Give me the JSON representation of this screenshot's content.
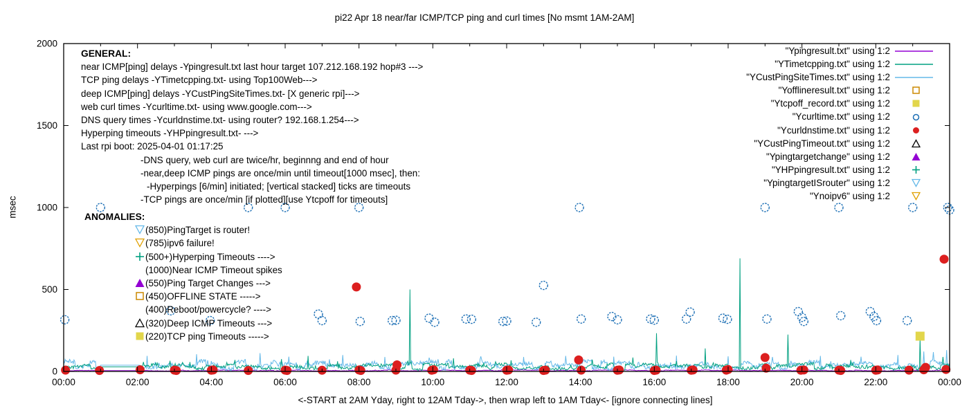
{
  "title": "pi22 Apr 18  near/far ICMP/TCP ping and curl times [No msmt 1AM-2AM]",
  "axes": {
    "y_label": "msec",
    "y_ticks": [
      "0",
      "500",
      "1000",
      "1500",
      "2000"
    ],
    "x_ticks": [
      "00:00",
      "02:00",
      "04:00",
      "06:00",
      "08:00",
      "10:00",
      "12:00",
      "14:00",
      "16:00",
      "18:00",
      "20:00",
      "22:00",
      "00:00"
    ],
    "x_label": "<-START at 2AM Yday, right to 12AM Tday->, then wrap left to 1AM Tday<- [ignore connecting lines]"
  },
  "legend": {
    "entries": [
      {
        "label": "\"Ypingresult.txt\" using 1:2",
        "sample": "line",
        "color": "#9400d3"
      },
      {
        "label": "\"YTimetcpping.txt\" using 1:2",
        "sample": "line",
        "color": "#00a080"
      },
      {
        "label": "\"YCustPingSiteTimes.txt\" using 1:2",
        "sample": "line",
        "color": "#63b8e8"
      },
      {
        "label": "\"Yofflineresult.txt\" using 1:2",
        "sample": "square-open",
        "color": "#cc8800"
      },
      {
        "label": "\"Ytcpoff_record.txt\" using 1:2",
        "sample": "square-filled",
        "color": "#e2d64b"
      },
      {
        "label": "\"Ycurltime.txt\" using 1:2",
        "sample": "circle-open",
        "color": "#1c6fb5"
      },
      {
        "label": "\"Ycurldnstime.txt\" using 1:2",
        "sample": "circle-filled",
        "color": "#dc1f1f"
      },
      {
        "label": "\"YCustPingTimeout.txt\" using 1:2",
        "sample": "tri-up-open",
        "color": "#000000"
      },
      {
        "label": "\"Ypingtargetchange\" using 1:2",
        "sample": "tri-up-filled",
        "color": "#9400d3"
      },
      {
        "label": "\"YHPpingresult.txt\" using 1:2",
        "sample": "plus",
        "color": "#00a080"
      },
      {
        "label": "\"YpingtargetISrouter\" using 1:2",
        "sample": "tri-down-open",
        "color": "#63b8e8"
      },
      {
        "label": "\"Ynoipv6\" using 1:2",
        "sample": "tri-down-open",
        "color": "#e0a000"
      }
    ]
  },
  "annotations": {
    "general_title": "GENERAL:",
    "general_lines": [
      {
        "text": "near ICMP[ping] delays -Ypingresult.txt last hour target 107.212.168.192 hop#3 --->",
        "indent": 0
      },
      {
        "text": "TCP ping delays -YTimetcpping.txt- using Top100Web--->",
        "indent": 0
      },
      {
        "text": "deep ICMP[ping] delays -YCustPingSiteTimes.txt- [X generic rpi]--->",
        "indent": 0
      },
      {
        "text": "web curl times -Ycurltime.txt- using www.google.com--->",
        "indent": 0
      },
      {
        "text": "DNS query times -Ycurldnstime.txt- using router? 192.168.1.254--->",
        "indent": 0
      },
      {
        "text": "Hyperping timeouts -YHPpingresult.txt- --->",
        "indent": 0
      },
      {
        "text": "Last rpi boot: 2025-04-01 01:17:25",
        "indent": 0
      },
      {
        "text": "-DNS query, web curl are twice/hr, beginnng and end of hour",
        "indent": 1
      },
      {
        "text": "-near,deep ICMP pings are once/min until timeout[1000 msec], then:",
        "indent": 1
      },
      {
        "text": "-Hyperpings [6/min] initiated; [vertical stacked] ticks are timeouts",
        "indent": 2
      },
      {
        "text": "-TCP pings are once/min [if plotted][use Ytcpoff for timeouts]",
        "indent": 1
      }
    ],
    "anomalies_title": "ANOMALIES:",
    "anomalies": [
      {
        "marker": "tri-down-open",
        "color": "#63b8e8",
        "text": "(850)PingTarget is router!"
      },
      {
        "marker": "tri-down-open",
        "color": "#e0a000",
        "text": "(785)ipv6 failure!"
      },
      {
        "marker": "plus",
        "color": "#00a080",
        "text": "(500+)Hyperping Timeouts ---->"
      },
      {
        "marker": "none",
        "color": "",
        "text": "(1000)Near ICMP Timeout spikes"
      },
      {
        "marker": "tri-up-filled",
        "color": "#9400d3",
        "text": "(550)Ping Target Changes --->"
      },
      {
        "marker": "square-open",
        "color": "#cc8800",
        "text": "(450)OFFLINE STATE ----->"
      },
      {
        "marker": "none",
        "color": "",
        "text": "(400)Reboot/powercycle? ---->"
      },
      {
        "marker": "tri-up-open",
        "color": "#000000",
        "text": "(320)Deep ICMP Timeouts --->"
      },
      {
        "marker": "square-filled",
        "color": "#e2d64b",
        "text": "(220)TCP ping Timeouts ----->"
      }
    ]
  },
  "chart_data": {
    "type": "line",
    "title": "pi22 Apr 18  near/far ICMP/TCP ping and curl times [No msmt 1AM-2AM]",
    "xlabel": "<-START at 2AM Yday, right to 12AM Tday->, then wrap left to 1AM Tday<- [ignore connecting lines]",
    "ylabel": "msec",
    "x_unit": "hour_of_day",
    "xlim": [
      0,
      24
    ],
    "ylim": [
      0,
      2000
    ],
    "grid": false,
    "legend_position": "top-right",
    "no_measurement_gap_hours": [
      1.0,
      2.05
    ],
    "series": [
      {
        "name": "Ypingresult.txt",
        "style": "line",
        "color": "#9400d3",
        "baseline": {
          "min": 3,
          "max": 9,
          "gap_value": 5
        },
        "spikes": []
      },
      {
        "name": "YCustPingSiteTimes.txt",
        "style": "line",
        "color": "#63b8e8",
        "baseline": {
          "min": 14,
          "max": 62,
          "gap_value": 38
        },
        "spikes": [
          [
            2.25,
            95
          ],
          [
            3.6,
            105
          ],
          [
            5.32,
            112
          ],
          [
            6.1,
            90
          ],
          [
            7.55,
            100
          ],
          [
            8.7,
            88
          ],
          [
            11.3,
            92
          ],
          [
            12.45,
            88
          ],
          [
            13.6,
            95
          ],
          [
            14.9,
            90
          ],
          [
            16.6,
            96
          ],
          [
            18.0,
            92
          ],
          [
            19.2,
            88
          ],
          [
            20.5,
            95
          ],
          [
            21.6,
            90
          ],
          [
            22.6,
            100
          ],
          [
            23.3,
            122
          ],
          [
            23.55,
            118
          ],
          [
            23.92,
            130
          ]
        ]
      },
      {
        "name": "YTimetcpping.txt",
        "style": "line",
        "color": "#00a080",
        "baseline": {
          "min": 12,
          "max": 46,
          "gap_value": 28
        },
        "spikes": [
          [
            2.88,
            65
          ],
          [
            4.63,
            70
          ],
          [
            5.9,
            75
          ],
          [
            6.62,
            95
          ],
          [
            7.42,
            62
          ],
          [
            9.38,
            500
          ],
          [
            10.55,
            80
          ],
          [
            12.12,
            68
          ],
          [
            14.32,
            72
          ],
          [
            15.42,
            85
          ],
          [
            16.05,
            233
          ],
          [
            17.37,
            140
          ],
          [
            18.32,
            690
          ],
          [
            19.63,
            225
          ],
          [
            21.32,
            70
          ],
          [
            23.2,
            200
          ],
          [
            23.82,
            88
          ]
        ]
      },
      {
        "name": "Ycurltime.txt",
        "style": "points",
        "marker": "circle-open",
        "color": "#1c6fb5",
        "points": [
          [
            0.03,
            315
          ],
          [
            1.0,
            1000
          ],
          [
            2.9,
            370
          ],
          [
            3.97,
            310
          ],
          [
            5.0,
            1000
          ],
          [
            6.0,
            1000
          ],
          [
            6.9,
            350
          ],
          [
            7.0,
            310
          ],
          [
            8.0,
            1000
          ],
          [
            8.03,
            305
          ],
          [
            8.9,
            310
          ],
          [
            9.0,
            312
          ],
          [
            9.9,
            325
          ],
          [
            10.05,
            300
          ],
          [
            10.9,
            320
          ],
          [
            11.05,
            318
          ],
          [
            11.9,
            305
          ],
          [
            12.0,
            307
          ],
          [
            12.8,
            300
          ],
          [
            13.0,
            525
          ],
          [
            13.97,
            1000
          ],
          [
            14.02,
            320
          ],
          [
            14.85,
            335
          ],
          [
            15.0,
            315
          ],
          [
            15.9,
            320
          ],
          [
            16.0,
            313
          ],
          [
            16.87,
            320
          ],
          [
            16.97,
            362
          ],
          [
            17.86,
            325
          ],
          [
            17.98,
            318
          ],
          [
            19.0,
            1000
          ],
          [
            19.05,
            320
          ],
          [
            19.9,
            365
          ],
          [
            20.0,
            330
          ],
          [
            20.05,
            305
          ],
          [
            21.0,
            1000
          ],
          [
            21.05,
            340
          ],
          [
            21.85,
            365
          ],
          [
            21.95,
            335
          ],
          [
            22.02,
            310
          ],
          [
            22.85,
            310
          ],
          [
            23.0,
            1000
          ],
          [
            23.95,
            1000
          ],
          [
            24.0,
            985
          ]
        ]
      },
      {
        "name": "Ycurldnstime.txt",
        "style": "points",
        "marker": "circle-filled",
        "color": "#dc1f1f",
        "points": [
          [
            0.05,
            8
          ],
          [
            0.97,
            6
          ],
          [
            2.07,
            10
          ],
          [
            3.0,
            8
          ],
          [
            3.05,
            6
          ],
          [
            4.0,
            7
          ],
          [
            4.05,
            9
          ],
          [
            5.0,
            6
          ],
          [
            6.0,
            8
          ],
          [
            6.05,
            6
          ],
          [
            7.0,
            7
          ],
          [
            7.93,
            515
          ],
          [
            8.0,
            9
          ],
          [
            8.05,
            6
          ],
          [
            9.0,
            8
          ],
          [
            9.03,
            40
          ],
          [
            9.97,
            7
          ],
          [
            10.02,
            10
          ],
          [
            11.0,
            8
          ],
          [
            11.05,
            6
          ],
          [
            12.0,
            7
          ],
          [
            12.05,
            9
          ],
          [
            13.0,
            6
          ],
          [
            13.05,
            8
          ],
          [
            13.95,
            70
          ],
          [
            14.02,
            8
          ],
          [
            15.0,
            7
          ],
          [
            15.05,
            9
          ],
          [
            16.0,
            6
          ],
          [
            16.05,
            8
          ],
          [
            17.0,
            7
          ],
          [
            17.05,
            9
          ],
          [
            17.95,
            8
          ],
          [
            18.0,
            12
          ],
          [
            19.0,
            85
          ],
          [
            19.03,
            20
          ],
          [
            19.97,
            7
          ],
          [
            20.05,
            9
          ],
          [
            21.0,
            8
          ],
          [
            21.05,
            6
          ],
          [
            22.0,
            7
          ],
          [
            22.05,
            9
          ],
          [
            22.9,
            8
          ],
          [
            23.3,
            10
          ],
          [
            23.35,
            25
          ],
          [
            23.85,
            685
          ],
          [
            23.9,
            12
          ]
        ]
      },
      {
        "name": "Ytcpoff_record.txt",
        "style": "points",
        "marker": "square-filled",
        "color": "#e2d64b",
        "points": [
          [
            23.2,
            215
          ]
        ]
      }
    ]
  }
}
